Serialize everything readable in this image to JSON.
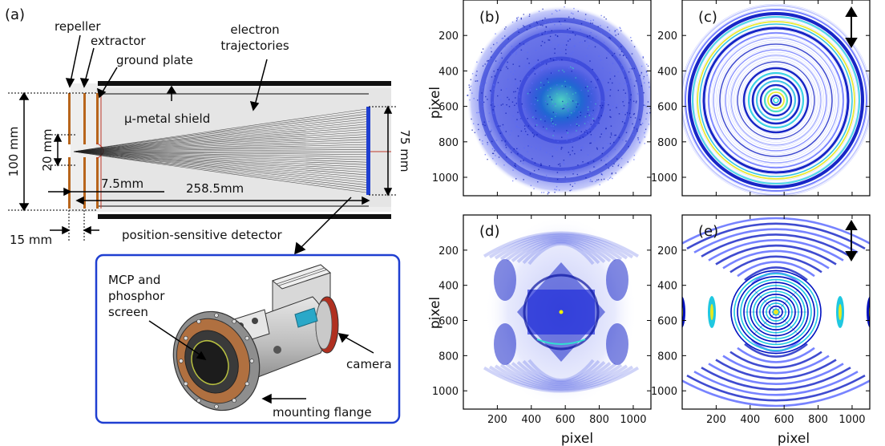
{
  "panel_a": {
    "panel_label": "(a)",
    "labels": {
      "repeller": "repeller",
      "extractor": "extractor",
      "ground_plate": "ground plate",
      "electron_trajectories_1": "electron",
      "electron_trajectories_2": "trajectories",
      "mu_metal_shield": "μ-metal shield",
      "position_sensitive_detector": "position-sensitive detector"
    },
    "dimensions": {
      "height_total": "100 mm",
      "height_inner": "20 mm",
      "gap_small": "7.5mm",
      "flight_length": "258.5mm",
      "detector_diameter": "75 mm",
      "spacing": "15 mm"
    }
  },
  "inset": {
    "labels": {
      "mcp_1": "MCP and",
      "mcp_2": "phosphor",
      "mcp_3": "screen",
      "camera": "camera",
      "mounting_flange": "mounting flange"
    },
    "colors": {
      "frame": "#1f3fd1",
      "camera_ring": "#c0392b",
      "flange": "#8c8c8c",
      "body": "#cfcfcf"
    }
  },
  "images": {
    "x_ticks": [
      "200",
      "400",
      "600",
      "800",
      "1000"
    ],
    "y_ticks": [
      "200",
      "400",
      "600",
      "800",
      "1000"
    ],
    "x_label": "pixel",
    "y_label": "pixel",
    "colormap": [
      "#ffffff",
      "#3a3aff",
      "#0000b0",
      "#00c8d8",
      "#f0f000"
    ],
    "panels": [
      {
        "id": "b",
        "label": "(b)",
        "pattern": "measured-noisy-rings",
        "polarization_arrow": false
      },
      {
        "id": "c",
        "label": "(c)",
        "pattern": "simulated-rings",
        "polarization_arrow": true
      },
      {
        "id": "d",
        "label": "(d)",
        "pattern": "measured-angular-structure",
        "polarization_arrow": false
      },
      {
        "id": "e",
        "label": "(e)",
        "pattern": "simulated-angular-structure",
        "polarization_arrow": true
      }
    ]
  }
}
